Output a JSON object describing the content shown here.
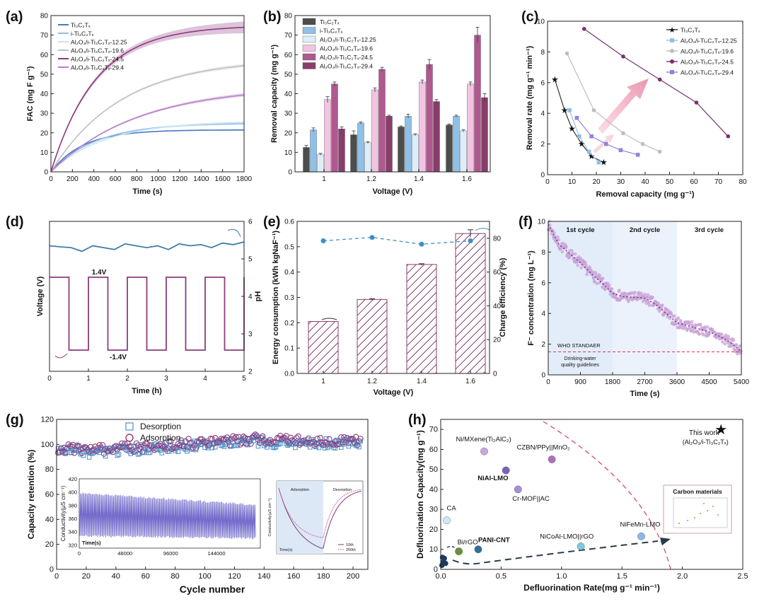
{
  "figure": {
    "background": "#ffffff"
  },
  "chart_data": [
    {
      "id": "a",
      "panel_label": "(a)",
      "type": "line",
      "xlabel": "Time (s)",
      "ylabel": "FAC (mg F g⁻¹)",
      "xlim": [
        0,
        1800
      ],
      "ylim": [
        0,
        80
      ],
      "xticks": [
        "0",
        "200",
        "400",
        "600",
        "800",
        "1000",
        "1200",
        "1400",
        "1600",
        "1800"
      ],
      "yticks": [
        "0",
        "10",
        "20",
        "30",
        "40",
        "50",
        "60",
        "70",
        "80"
      ],
      "series": [
        {
          "name": "Ti₃C₂Tₓ",
          "color": "#4a79c4",
          "qmax": 21.5,
          "tau": 300,
          "band": 0.3
        },
        {
          "name": "i-Ti₃C₂Tₓ",
          "color": "#8fbfe6",
          "qmax": 25,
          "tau": 420,
          "band": 0.5
        },
        {
          "name": "Al₂O₃/i-Ti₃C₂Tₓ-12.25",
          "color": "#c9e4f2",
          "qmax": 26,
          "tau": 500,
          "band": 0.5
        },
        {
          "name": "Al₂O₃/i-Ti₃C₂Tₓ-19.6",
          "color": "#c0c0c0",
          "qmax": 58,
          "tau": 650,
          "band": 0.8
        },
        {
          "name": "Al₂O₃/i-Ti₃C₂Tₓ-24.5",
          "color": "#8e3a80",
          "qmax": 75,
          "tau": 420,
          "band": 2.5
        },
        {
          "name": "Al₂O₃/i-Ti₃C₂Tₓ-29.4",
          "color": "#b77fc8",
          "qmax": 44,
          "tau": 800,
          "band": 0.8
        }
      ]
    },
    {
      "id": "b",
      "panel_label": "(b)",
      "type": "bar",
      "xlabel": "Voltage (V)",
      "ylabel": "Removal capacity (mg g⁻¹)",
      "ylim": [
        0,
        80
      ],
      "yticks": [
        "0",
        "10",
        "20",
        "30",
        "40",
        "50",
        "60",
        "70",
        "80"
      ],
      "categories": [
        "1",
        "1.2",
        "1.4",
        "1.6"
      ],
      "series": [
        {
          "name": "Ti₃C₂Tₓ",
          "color": "#4d4d4d",
          "values": [
            12.5,
            19,
            23,
            24
          ],
          "errors": [
            1,
            2,
            0.5,
            0.5
          ]
        },
        {
          "name": "i-Ti₃C₂Tₓ",
          "color": "#8fc0e8",
          "values": [
            21.5,
            25,
            28.5,
            28.5
          ],
          "errors": [
            1,
            0.5,
            1,
            0.5
          ]
        },
        {
          "name": "Al₂O₃/i-Ti₃C₂Tₓ-12.25",
          "color": "#deeef8",
          "values": [
            9,
            15,
            19,
            21
          ],
          "errors": [
            0.5,
            0.5,
            0.5,
            0.5
          ]
        },
        {
          "name": "Al₂O₃/i-Ti₃C₂Tₓ-19.6",
          "color": "#f3c4e2",
          "values": [
            37,
            42,
            46,
            45
          ],
          "errors": [
            1.5,
            1,
            1,
            1
          ]
        },
        {
          "name": "Al₂O₃/i-Ti₃C₂Tₓ-24.5",
          "color": "#b0588f",
          "values": [
            45,
            52.5,
            55,
            70
          ],
          "errors": [
            1,
            1,
            2.5,
            4
          ]
        },
        {
          "name": "Al₂O₃/i-Ti₃C₂Tₓ-29.4",
          "color": "#8a3d6b",
          "values": [
            22,
            28.5,
            36,
            38
          ],
          "errors": [
            1,
            0.5,
            1,
            2
          ]
        }
      ]
    },
    {
      "id": "c",
      "panel_label": "(c)",
      "type": "line",
      "xlabel": "Removal capacity (mg g⁻¹)",
      "ylabel": "Removal rate (mg g⁻¹ min⁻¹)",
      "xlim": [
        0,
        80
      ],
      "ylim": [
        0,
        10
      ],
      "xticks": [
        "0",
        "10",
        "20",
        "30",
        "40",
        "50",
        "60",
        "70",
        "80"
      ],
      "yticks": [
        "0",
        "2",
        "4",
        "6",
        "8",
        "10"
      ],
      "series": [
        {
          "name": "Ti₃C₂Tₓ",
          "color": "#333333",
          "marker": "star",
          "x": [
            3,
            7,
            10,
            14,
            18,
            23
          ],
          "y": [
            6.2,
            4.2,
            3.0,
            2.0,
            1.2,
            0.8
          ]
        },
        {
          "name": "Al₂O₃/i-Ti₃C₂Tₓ-12.25",
          "color": "#8fc0e8",
          "marker": "square",
          "x": [
            9,
            13,
            17,
            21
          ],
          "y": [
            4.2,
            2.5,
            1.5,
            0.8
          ]
        },
        {
          "name": "Al₂O₃/i-Ti₃C₂Tₓ-19.6",
          "color": "#bdbdbd",
          "marker": "circle",
          "x": [
            8,
            19,
            31,
            39,
            46
          ],
          "y": [
            7.9,
            4.2,
            2.7,
            2.0,
            1.5
          ]
        },
        {
          "name": "Al₂O₃/i-Ti₃C₂Tₓ-24.5",
          "color": "#7a2f6e",
          "marker": "circle",
          "x": [
            15,
            31,
            46,
            61,
            74
          ],
          "y": [
            9.5,
            7.7,
            6.2,
            4.7,
            2.5
          ]
        },
        {
          "name": "Al₂O₃/i-Ti₃C₂Tₓ-29.4",
          "color": "#8f86d8",
          "marker": "square",
          "x": [
            12,
            18,
            24,
            30,
            37
          ],
          "y": [
            3.7,
            2.5,
            2.0,
            1.6,
            1.3
          ]
        }
      ]
    },
    {
      "id": "d",
      "panel_label": "(d)",
      "type": "line",
      "xlabel": "Time (h)",
      "ylabel": "Voltage (V)",
      "y2label": "pH",
      "xlim": [
        0,
        5
      ],
      "xticks": [
        "0",
        "1",
        "2",
        "3",
        "4",
        "5"
      ],
      "y2lim": [
        2,
        6
      ],
      "y2ticks": [
        "2",
        "3",
        "4",
        "5",
        "6"
      ],
      "annotations": [
        "1.4V",
        "-1.4V"
      ],
      "series": [
        {
          "name": "Voltage",
          "color": "#8a3d7e",
          "period": 1.0,
          "high_fraction": 0.5,
          "start_low": 0.5
        },
        {
          "name": "pH",
          "color": "#3f7ea6",
          "values": [
            5.35,
            5.32,
            5.3,
            5.2,
            5.35,
            5.3,
            5.25,
            5.4,
            5.35,
            5.3,
            5.35,
            5.25,
            5.4,
            5.35,
            5.38,
            5.3,
            5.42,
            5.38,
            5.45
          ]
        }
      ]
    },
    {
      "id": "e",
      "panel_label": "(e)",
      "type": "bar",
      "xlabel": "Voltage (V)",
      "ylabel": "Energy consumption (kWh kgNaF⁻¹)",
      "y2label": "Charge efficiency (%)",
      "ylim": [
        0,
        0.6
      ],
      "yticks": [
        "0.0",
        "0.1",
        "0.2",
        "0.3",
        "0.4",
        "0.5",
        "0.6"
      ],
      "y2lim": [
        0,
        90
      ],
      "y2ticks": [
        "0",
        "20",
        "40",
        "60",
        "80"
      ],
      "categories": [
        "1",
        "1.2",
        "1.4",
        "1.6"
      ],
      "series": [
        {
          "name": "Energy consumption",
          "color": "#8a3d6b",
          "values": [
            0.205,
            0.292,
            0.43,
            0.552
          ],
          "errors": [
            0,
            0.003,
            0.003,
            0.015
          ]
        },
        {
          "name": "Charge efficiency",
          "color": "#3f8fc0",
          "values": [
            78.5,
            80.5,
            76.5,
            78.5
          ]
        }
      ]
    },
    {
      "id": "f",
      "panel_label": "(f)",
      "type": "scatter",
      "xlabel": "Time (s)",
      "ylabel": "F⁻ concentration (mg L⁻¹)",
      "xlim": [
        0,
        5400
      ],
      "ylim": [
        0,
        10
      ],
      "xticks": [
        "0",
        "900",
        "1800",
        "2700",
        "3600",
        "4500",
        "5400"
      ],
      "yticks": [
        "0",
        "2",
        "4",
        "6",
        "8",
        "10"
      ],
      "annotations": [
        "1st cycle",
        "2nd cycle",
        "3rd cycle",
        "WHO STANDAER",
        "Drinking-water",
        "quality guidelines"
      ],
      "threshold": 1.5,
      "trend_x": [
        0,
        300,
        600,
        900,
        1200,
        1500,
        1800,
        2100,
        2400,
        2700,
        3000,
        3300,
        3600,
        3900,
        4200,
        4500,
        4800,
        5100,
        5400
      ],
      "trend_y": [
        9.8,
        8.5,
        7.9,
        7.3,
        6.6,
        6.0,
        5.3,
        5.1,
        5.05,
        5.0,
        4.6,
        4.0,
        3.4,
        3.2,
        3.0,
        2.8,
        2.5,
        2.1,
        1.5
      ]
    },
    {
      "id": "g",
      "panel_label": "(g)",
      "type": "scatter",
      "xlabel": "Cycle number",
      "ylabel": "Capacity retention (%)",
      "xlim": [
        0,
        210
      ],
      "ylim": [
        0,
        120
      ],
      "xticks": [
        "0",
        "20",
        "40",
        "60",
        "80",
        "100",
        "120",
        "140",
        "160",
        "180",
        "200"
      ],
      "yticks": [
        "0",
        "20",
        "40",
        "60",
        "80",
        "100",
        "120"
      ],
      "series": [
        {
          "name": "Desorption",
          "color": "#4a8fc8",
          "marker": "square"
        },
        {
          "name": "Adsorption",
          "color": "#8a3d7e",
          "marker": "circle"
        }
      ],
      "inset_left": {
        "xlabel": "Time(s)",
        "ylabel": "Conductivity(μS cm⁻¹)",
        "color": "#6f67c9",
        "xticks": [
          "0",
          "48000",
          "96000",
          "144000"
        ],
        "yticks": [
          "320",
          "340",
          "360",
          "380",
          "400",
          "420"
        ]
      },
      "inset_right": {
        "xlabel": "Time(s)",
        "ylabel": "Conductivity(μS cm⁻¹)",
        "region_labels": [
          "Adsorption",
          "Desorption"
        ],
        "legend": [
          "10th",
          "250th"
        ]
      }
    },
    {
      "id": "h",
      "panel_label": "(h)",
      "type": "scatter",
      "xlabel": "Defluorination Rate(mg g⁻¹ min⁻¹)",
      "ylabel": "Defluorination Capacity(mg g⁻¹)",
      "xlim": [
        0,
        2.5
      ],
      "ylim": [
        0,
        75
      ],
      "xticks": [
        "0.0",
        "0.5",
        "1.0",
        "1.5",
        "2.0",
        "2.5"
      ],
      "yticks": [
        "0",
        "10",
        "20",
        "30",
        "40",
        "50",
        "60",
        "70"
      ],
      "points": [
        {
          "label": "Ni/MXene(Ti₂AlC₂)",
          "x": 0.36,
          "y": 59,
          "color": "#c9a6e0"
        },
        {
          "label": "CZBN/PPy||MnO₂",
          "x": 0.92,
          "y": 55,
          "color": "#b06fc0"
        },
        {
          "label": "NiAl-LMO",
          "x": 0.54,
          "y": 49.5,
          "color": "#7d5fc0"
        },
        {
          "label": "Cr-MOF||AC",
          "x": 0.64,
          "y": 40,
          "color": "#a88fd8"
        },
        {
          "label": "CA",
          "x": 0.05,
          "y": 24.5,
          "color": "#cfe8f2"
        },
        {
          "label": "Bi/rGO",
          "x": 0.15,
          "y": 9,
          "color": "#6a8f3c"
        },
        {
          "label": "PANI-CNT",
          "x": 0.31,
          "y": 10,
          "color": "#2d6f9c"
        },
        {
          "label": "NiCoAl-LMO||rGO",
          "x": 1.16,
          "y": 11.5,
          "color": "#7fc8e0"
        },
        {
          "label": "NiFeMn-LMO",
          "x": 1.66,
          "y": 16.5,
          "color": "#8fb8e6"
        }
      ],
      "this_work": {
        "label": "This work",
        "sublabel": "(Al₂O₃/i-Ti₃C₂Tₓ)",
        "x": 2.32,
        "y": 70,
        "color": "#d9477a"
      },
      "inset_title": "Carbon materials"
    }
  ]
}
